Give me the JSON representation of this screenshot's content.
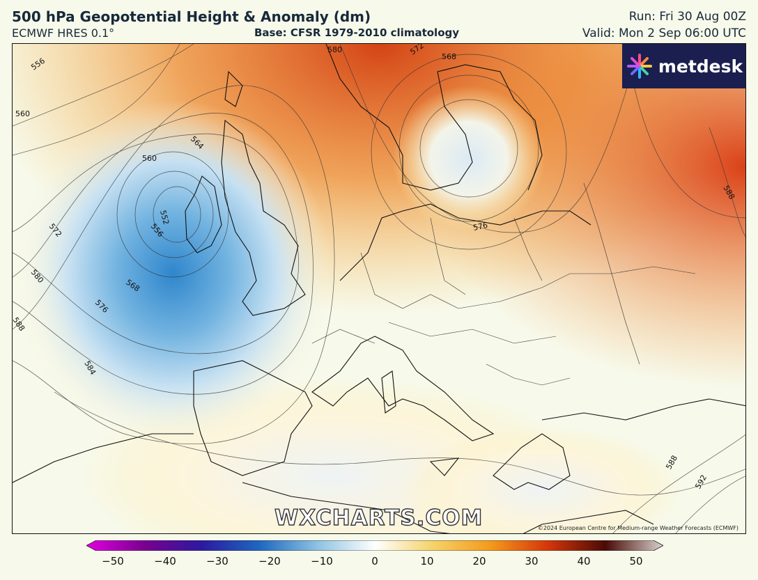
{
  "header": {
    "title": "500 hPa Geopotential Height & Anomaly (dm)",
    "model": "ECMWF HRES 0.1°",
    "base": "Base: CFSR 1979-2010 climatology",
    "run": "Run: Fri 30 Aug 00Z",
    "valid": "Valid: Mon 2 Sep 06:00 UTC"
  },
  "logo": {
    "text": "metdesk"
  },
  "watermark": "WXCHARTS.COM",
  "copyright": "©2024 European Centre for Medium-range Weather Forecasts (ECMWF)",
  "contour_labels": [
    "556",
    "560",
    "564",
    "560",
    "552",
    "556",
    "572",
    "580",
    "568",
    "576",
    "588",
    "584",
    "580",
    "572",
    "568",
    "576",
    "588",
    "588",
    "592"
  ],
  "colorbar": {
    "ticks": [
      "−50",
      "−40",
      "−30",
      "−20",
      "−10",
      "0",
      "10",
      "20",
      "30",
      "40",
      "50"
    ],
    "colors": [
      "#e100e1",
      "#7a0090",
      "#2b1aa0",
      "#1f67c0",
      "#8dc2e2",
      "#ffffff",
      "#f5d36a",
      "#f59a1c",
      "#d4360a",
      "#4a0b06",
      "#d9d2cf"
    ]
  },
  "colors": {
    "background": "#f7f9ea",
    "low_anomaly": "#3a8fd0",
    "high_anomaly": "#d94a0c"
  }
}
